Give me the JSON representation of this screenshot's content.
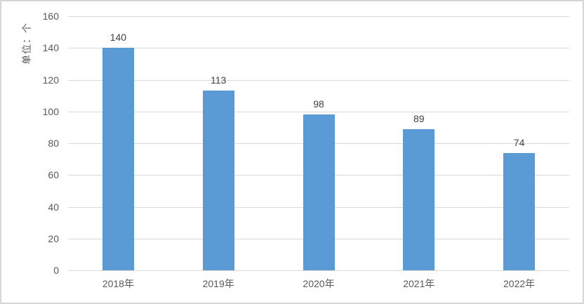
{
  "chart_data": {
    "type": "bar",
    "title": "",
    "y_axis_title": "单位：个",
    "categories": [
      "2018年",
      "2019年",
      "2020年",
      "2021年",
      "2022年"
    ],
    "values": [
      140,
      113,
      98,
      89,
      74
    ],
    "data_labels": [
      "140",
      "113",
      "98",
      "89",
      "74"
    ],
    "y_tick_labels": [
      "0",
      "20",
      "40",
      "60",
      "80",
      "100",
      "120",
      "140",
      "160"
    ],
    "ylim": [
      0,
      160
    ],
    "ytick_step": 20,
    "grid": true,
    "legend_position": "none",
    "colors": {
      "bar": "#5b9bd5",
      "gridline": "#d9d9d9",
      "axis_line": "#d9d9d9",
      "axis_text": "#595959",
      "data_label": "#404040",
      "frame_border": "#d6d6d6",
      "background": "#ffffff"
    }
  }
}
